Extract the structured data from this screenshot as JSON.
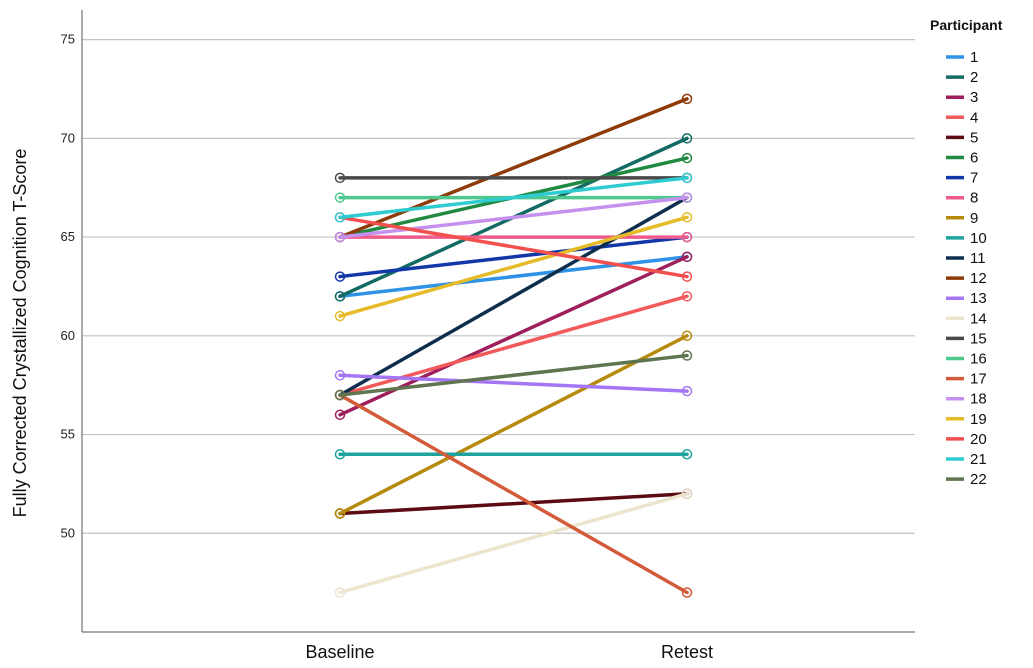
{
  "chart_data": {
    "type": "line",
    "title": "",
    "xlabel": "",
    "ylabel": "Fully Corrected Crystallized Cognition T-Score",
    "categories": [
      "Baseline",
      "Retest"
    ],
    "ylim": [
      45,
      76.5
    ],
    "yticks": [
      50,
      55,
      60,
      65,
      70,
      75
    ],
    "grid": "horizontal",
    "legend": {
      "title": "Participant",
      "position": "right"
    },
    "series": [
      {
        "name": "1",
        "color": "#2E92E6",
        "values": [
          62,
          64
        ]
      },
      {
        "name": "2",
        "color": "#136B63",
        "values": [
          62,
          70
        ]
      },
      {
        "name": "3",
        "color": "#9E1F5B",
        "values": [
          56,
          64
        ]
      },
      {
        "name": "4",
        "color": "#F2595A",
        "values": [
          57,
          62
        ]
      },
      {
        "name": "5",
        "color": "#5C0A14",
        "values": [
          51,
          52
        ]
      },
      {
        "name": "6",
        "color": "#218A42",
        "values": [
          65,
          69
        ]
      },
      {
        "name": "7",
        "color": "#1237A8",
        "values": [
          63,
          65
        ]
      },
      {
        "name": "8",
        "color": "#EE5C8B",
        "values": [
          65,
          65
        ]
      },
      {
        "name": "9",
        "color": "#B68A0C",
        "values": [
          51,
          60
        ]
      },
      {
        "name": "10",
        "color": "#1FA39C",
        "values": [
          54,
          54
        ]
      },
      {
        "name": "11",
        "color": "#0E2E4D",
        "values": [
          57,
          67
        ]
      },
      {
        "name": "12",
        "color": "#8E3B0A",
        "values": [
          65,
          72
        ]
      },
      {
        "name": "13",
        "color": "#A476F3",
        "values": [
          58,
          57.2
        ]
      },
      {
        "name": "14",
        "color": "#ECE5CE",
        "values": [
          47,
          52
        ]
      },
      {
        "name": "15",
        "color": "#4A4A4A",
        "values": [
          68,
          68
        ]
      },
      {
        "name": "16",
        "color": "#4FC88E",
        "values": [
          67,
          67
        ]
      },
      {
        "name": "17",
        "color": "#D35B39",
        "values": [
          57,
          47
        ]
      },
      {
        "name": "18",
        "color": "#C690EE",
        "values": [
          65,
          67
        ]
      },
      {
        "name": "19",
        "color": "#E5BB28",
        "values": [
          61,
          66
        ]
      },
      {
        "name": "20",
        "color": "#F24F4F",
        "values": [
          66,
          63
        ]
      },
      {
        "name": "21",
        "color": "#2ECBD0",
        "values": [
          66,
          68
        ]
      },
      {
        "name": "22",
        "color": "#5E7550",
        "values": [
          57,
          59
        ]
      }
    ]
  }
}
